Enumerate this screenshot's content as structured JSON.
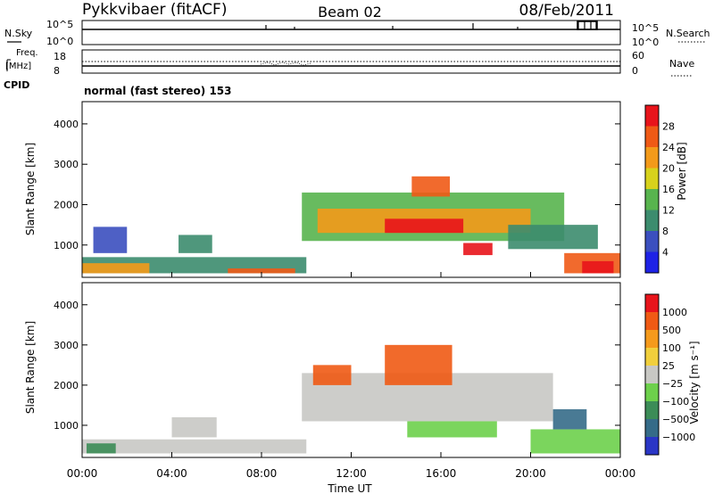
{
  "header": {
    "title_left": "Pykkvibaer (fitACF)",
    "title_center": "Beam 02",
    "title_right": "08/Feb/2011"
  },
  "status_panels": {
    "nsky_label": "N.Sky",
    "nsearch_label": "N.Search",
    "nsky_ticks": [
      "10^5",
      "10^0"
    ],
    "nsearch_ticks": [
      "10^5",
      "10^0"
    ],
    "freq_label_line1": "Freq.",
    "freq_label_line2": "[MHz]",
    "freq_ticks": [
      "18",
      "8"
    ],
    "nave_label": "Nave",
    "nave_ticks": [
      "60",
      "0"
    ],
    "cpid_label": "CPID",
    "cpid_text": "normal (fast stereo) 153"
  },
  "chart_data": [
    {
      "type": "heatmap",
      "name": "power",
      "ylabel": "Slant Range [km]",
      "yticks": [
        "1000",
        "2000",
        "3000",
        "4000"
      ],
      "ylim": [
        200,
        4550
      ],
      "xlim": [
        0,
        24
      ],
      "colorbar_label": "Power [dB]",
      "colorbar_ticks": [
        "4",
        "8",
        "12",
        "16",
        "20",
        "24",
        "28"
      ],
      "colors": [
        "#1e22e6",
        "#3b4fbf",
        "#3c8c6e",
        "#58b44e",
        "#d7d21c",
        "#f39a1a",
        "#ef5a16",
        "#e8141b"
      ],
      "regions": [
        {
          "t0": 0.0,
          "t1": 10.0,
          "r0": 300,
          "r1": 700,
          "level": 2
        },
        {
          "t0": 0.0,
          "t1": 3.0,
          "r0": 300,
          "r1": 550,
          "level": 5
        },
        {
          "t0": 6.5,
          "t1": 9.5,
          "r0": 300,
          "r1": 420,
          "level": 6
        },
        {
          "t0": 0.5,
          "t1": 2.0,
          "r0": 800,
          "r1": 1450,
          "level": 1
        },
        {
          "t0": 4.3,
          "t1": 5.8,
          "r0": 800,
          "r1": 1250,
          "level": 2
        },
        {
          "t0": 9.8,
          "t1": 21.5,
          "r0": 1100,
          "r1": 2300,
          "level": 3
        },
        {
          "t0": 10.5,
          "t1": 20.0,
          "r0": 1300,
          "r1": 1900,
          "level": 5
        },
        {
          "t0": 13.5,
          "t1": 17.0,
          "r0": 1300,
          "r1": 1650,
          "level": 7
        },
        {
          "t0": 14.7,
          "t1": 16.4,
          "r0": 2200,
          "r1": 2700,
          "level": 6
        },
        {
          "t0": 17.0,
          "t1": 18.3,
          "r0": 750,
          "r1": 1050,
          "level": 7
        },
        {
          "t0": 19.0,
          "t1": 23.0,
          "r0": 900,
          "r1": 1500,
          "level": 2
        },
        {
          "t0": 21.5,
          "t1": 24.0,
          "r0": 300,
          "r1": 800,
          "level": 6
        },
        {
          "t0": 22.3,
          "t1": 23.7,
          "r0": 300,
          "r1": 600,
          "level": 7
        }
      ]
    },
    {
      "type": "heatmap",
      "name": "velocity",
      "ylabel": "Slant Range [km]",
      "yticks": [
        "1000",
        "2000",
        "3000",
        "4000"
      ],
      "ylim": [
        200,
        4550
      ],
      "xlim": [
        0,
        24
      ],
      "colorbar_label": "Velocity [m s⁻¹]",
      "colorbar_ticks": [
        "1000",
        "500",
        "100",
        "25",
        "−25",
        "−100",
        "−500",
        "−1000"
      ],
      "colors": [
        "#2a36c6",
        "#356b88",
        "#3c8c57",
        "#6dd04b",
        "#c8c8c4",
        "#f1cf3c",
        "#f59a1c",
        "#f05a14",
        "#e8141b"
      ],
      "regions": [
        {
          "t0": 0.0,
          "t1": 10.0,
          "r0": 300,
          "r1": 650,
          "level": 4
        },
        {
          "t0": 0.2,
          "t1": 1.5,
          "r0": 300,
          "r1": 550,
          "level": 2
        },
        {
          "t0": 4.0,
          "t1": 6.0,
          "r0": 700,
          "r1": 1200,
          "level": 4
        },
        {
          "t0": 9.8,
          "t1": 21.0,
          "r0": 1100,
          "r1": 2300,
          "level": 4
        },
        {
          "t0": 10.3,
          "t1": 12.0,
          "r0": 2000,
          "r1": 2500,
          "level": 7
        },
        {
          "t0": 13.5,
          "t1": 16.5,
          "r0": 2000,
          "r1": 3000,
          "level": 7
        },
        {
          "t0": 14.5,
          "t1": 18.5,
          "r0": 700,
          "r1": 1100,
          "level": 3
        },
        {
          "t0": 20.0,
          "t1": 24.0,
          "r0": 300,
          "r1": 900,
          "level": 3
        },
        {
          "t0": 21.0,
          "t1": 22.5,
          "r0": 900,
          "r1": 1400,
          "level": 1
        }
      ]
    }
  ],
  "xaxis": {
    "ticks": [
      "00:00",
      "04:00",
      "08:00",
      "12:00",
      "16:00",
      "20:00",
      "00:00"
    ],
    "tick_hours": [
      0,
      4,
      8,
      12,
      16,
      20,
      24
    ],
    "label": "Time UT"
  }
}
